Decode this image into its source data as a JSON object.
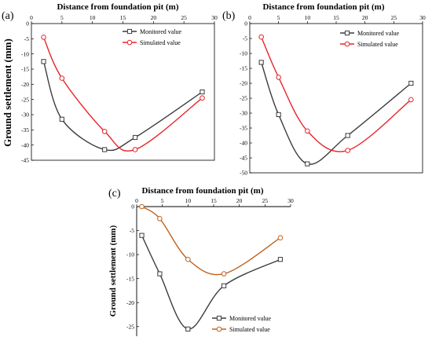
{
  "chart_data": [
    {
      "type": "line",
      "panel_label": "(a)",
      "xlabel": "Distance from foundation pit (m)",
      "ylabel": "Ground settlement (mm)",
      "xlim": [
        0,
        30
      ],
      "ylim": [
        -45,
        0
      ],
      "xticks": [
        0,
        5,
        10,
        15,
        20,
        25,
        30
      ],
      "yticks": [
        0,
        -5,
        -10,
        -15,
        -20,
        -25,
        -30,
        -35,
        -40,
        -45
      ],
      "x_axis_position": "top",
      "legend_position": "top-right",
      "series": [
        {
          "name": "Monitored value",
          "color": "#3c3c3c",
          "marker": "square",
          "x": [
            2,
            5,
            12,
            17,
            28
          ],
          "y": [
            -12.5,
            -31.5,
            -41.5,
            -37.5,
            -22.5
          ]
        },
        {
          "name": "Simulated value",
          "color": "#e8242a",
          "marker": "circle",
          "x": [
            2,
            5,
            12,
            17,
            28
          ],
          "y": [
            -4.5,
            -18,
            -35.5,
            -41.5,
            -24.5
          ]
        }
      ]
    },
    {
      "type": "line",
      "panel_label": "(b)",
      "xlabel": "Distance from foundation pit (m)",
      "ylabel": "",
      "xlim": [
        0,
        30
      ],
      "ylim": [
        -50,
        0
      ],
      "xticks": [
        0,
        5,
        10,
        15,
        20,
        25,
        30
      ],
      "yticks": [
        0,
        -5,
        -10,
        -15,
        -20,
        -25,
        -30,
        -35,
        -40,
        -45,
        -50
      ],
      "x_axis_position": "top",
      "legend_position": "top-right",
      "series": [
        {
          "name": "Monitored value",
          "color": "#3c3c3c",
          "marker": "square",
          "x": [
            2,
            5,
            10,
            17,
            28
          ],
          "y": [
            -13,
            -30.5,
            -47,
            -37.5,
            -20
          ]
        },
        {
          "name": "Simulated value",
          "color": "#e8242a",
          "marker": "circle",
          "x": [
            2,
            5,
            10,
            17,
            28
          ],
          "y": [
            -4.5,
            -18,
            -36,
            -42.5,
            -25.5
          ]
        }
      ]
    },
    {
      "type": "line",
      "panel_label": "(c)",
      "xlabel": "Distance from foundation pit (m)",
      "ylabel": "Ground settlement (mm)",
      "xlim": [
        0,
        30
      ],
      "ylim": [
        -27,
        0
      ],
      "xticks": [
        0,
        5,
        10,
        15,
        20,
        25,
        30
      ],
      "yticks": [
        0,
        -5,
        -10,
        -15,
        -20,
        -25
      ],
      "x_axis_position": "top",
      "legend_position": "bottom-right",
      "series": [
        {
          "name": "Monitored value",
          "color": "#3c3c3c",
          "marker": "square",
          "x": [
            1,
            4.5,
            10,
            17,
            28
          ],
          "y": [
            -6,
            -14,
            -25.5,
            -16.5,
            -11
          ]
        },
        {
          "name": "Simulated value",
          "color": "#c0611c",
          "marker": "circle",
          "x": [
            1,
            4.5,
            10,
            17,
            28
          ],
          "y": [
            0,
            -2.5,
            -11,
            -14,
            -6.5
          ]
        }
      ]
    }
  ]
}
